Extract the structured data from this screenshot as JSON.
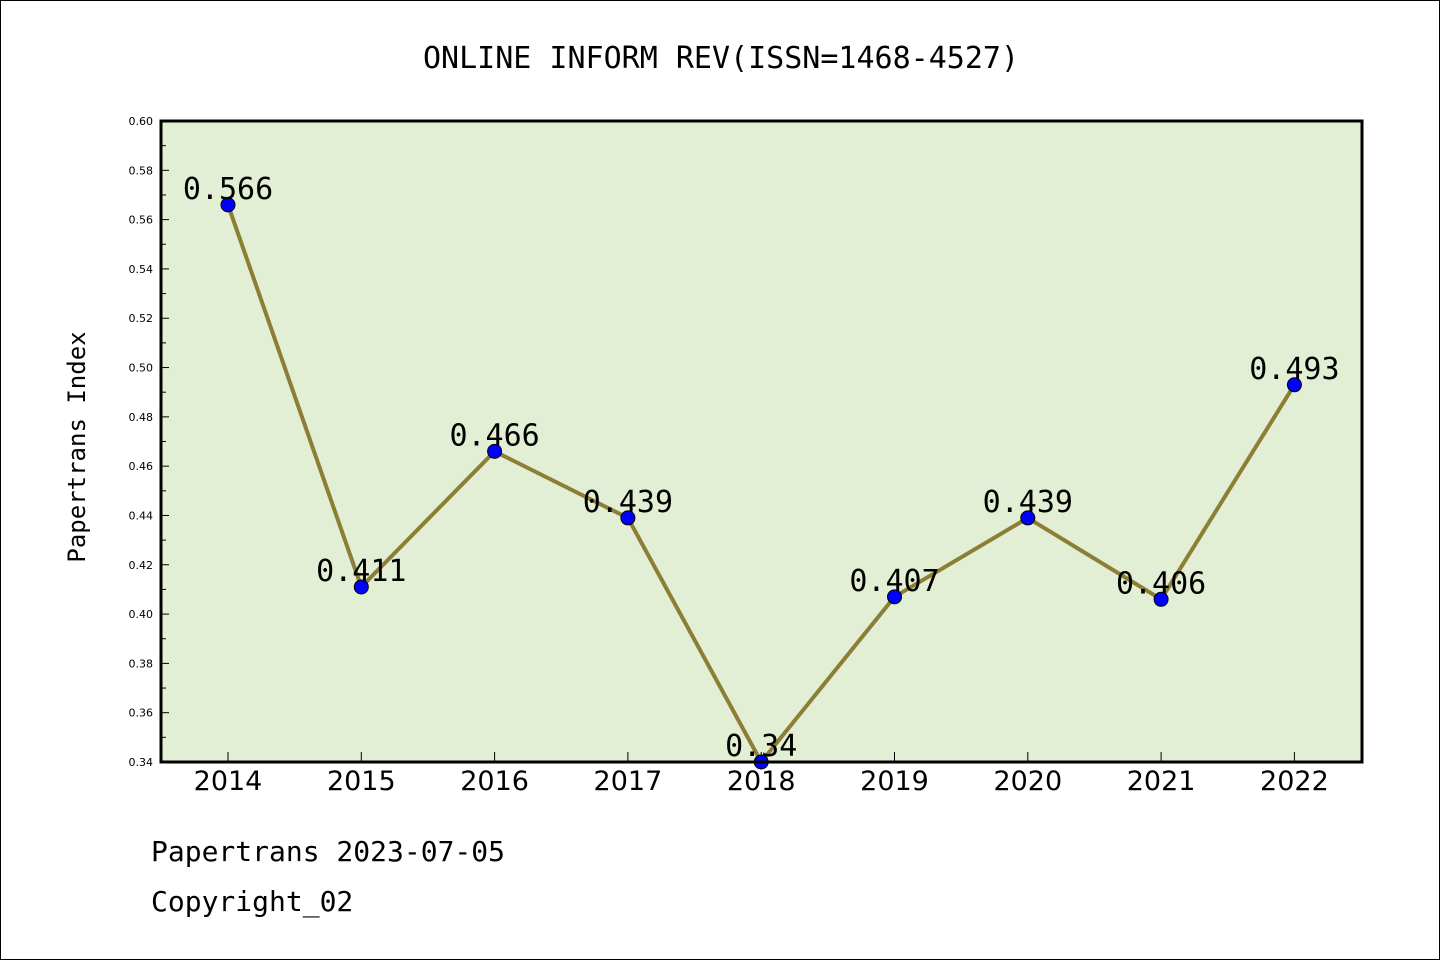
{
  "chart_data": {
    "type": "line",
    "title": "ONLINE INFORM REV(ISSN=1468-4527)",
    "xlabel": "",
    "ylabel": "Papertrans Index",
    "categories": [
      "2014",
      "2015",
      "2016",
      "2017",
      "2018",
      "2019",
      "2020",
      "2021",
      "2022"
    ],
    "series": [
      {
        "values": [
          0.566,
          0.411,
          0.466,
          0.439,
          0.34,
          0.407,
          0.439,
          0.406,
          0.493
        ]
      }
    ],
    "data_labels": [
      "0.566",
      "0.411",
      "0.466",
      "0.439",
      "0.34",
      "0.407",
      "0.439",
      "0.406",
      "0.493"
    ],
    "ylim": [
      0.34,
      0.6
    ],
    "yticks": [
      "0.34",
      "0.36",
      "0.38",
      "0.40",
      "0.42",
      "0.44",
      "0.46",
      "0.48",
      "0.50",
      "0.52",
      "0.54",
      "0.56",
      "0.58",
      "0.60"
    ],
    "grid": false,
    "legend": "none",
    "colors": {
      "plot_background": "#e2efd5",
      "line": "#8c7e35",
      "marker": "#0000ff"
    }
  },
  "footer": {
    "line1": "Papertrans 2023-07-05",
    "line2": "Copyright_02"
  }
}
